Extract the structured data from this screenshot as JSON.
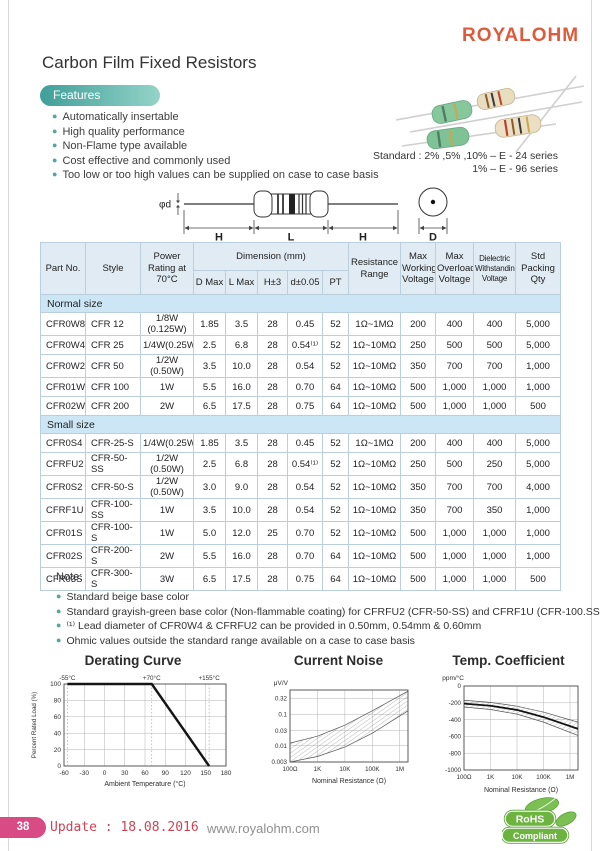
{
  "page": {
    "logo": "ROYALOHM",
    "title": "Carbon Film Fixed Resistors",
    "features_label": "Features",
    "features": [
      "Automatically insertable",
      "High quality performance",
      "Non-Flame type available",
      "Cost effective and commonly used",
      "Too low or too high values can be supplied on case to case basis"
    ],
    "standard_line1": "Standard : 2% ,5% ,10% – E - 24 series",
    "standard_line2": "1% – E - 96 series"
  },
  "diagram": {
    "phi_d": "φd",
    "h_left": "H",
    "l": "L",
    "h_right": "H",
    "d": "D"
  },
  "table": {
    "headers": {
      "part_no": "Part No.",
      "style": "Style",
      "power": "Power Rating at 70°C",
      "dimension": "Dimension (mm)",
      "d_max": "D Max",
      "l_max": "L Max",
      "h": "H±3",
      "d_lead": "d±0.05",
      "pt": "PT",
      "resistance": "Resistance Range",
      "max_working": "Max Working Voltage",
      "max_overload": "Max Overload Voltage",
      "dielectric": "Dielectric Withstanding Voltage",
      "packing": "Std Packing Qty"
    },
    "sections": [
      {
        "label": "Normal size",
        "rows": [
          [
            "CFR0W8",
            "CFR 12",
            "1/8W (0.125W)",
            "1.85",
            "3.5",
            "28",
            "0.45",
            "52",
            "1Ω~1MΩ",
            "200",
            "400",
            "400",
            "5,000"
          ],
          [
            "CFR0W4",
            "CFR 25",
            "1/4W(0.25W)",
            "2.5",
            "6.8",
            "28",
            "0.54⁽¹⁾",
            "52",
            "1Ω~10MΩ",
            "250",
            "500",
            "500",
            "5,000"
          ],
          [
            "CFR0W2",
            "CFR 50",
            "1/2W (0.50W)",
            "3.5",
            "10.0",
            "28",
            "0.54",
            "52",
            "1Ω~10MΩ",
            "350",
            "700",
            "700",
            "1,000"
          ],
          [
            "CFR01W",
            "CFR 100",
            "1W",
            "5.5",
            "16.0",
            "28",
            "0.70",
            "64",
            "1Ω~10MΩ",
            "500",
            "1,000",
            "1,000",
            "1,000"
          ],
          [
            "CFR02W",
            "CFR 200",
            "2W",
            "6.5",
            "17.5",
            "28",
            "0.75",
            "64",
            "1Ω~10MΩ",
            "500",
            "1,000",
            "1,000",
            "500"
          ]
        ]
      },
      {
        "label": "Small size",
        "rows": [
          [
            "CFR0S4",
            "CFR-25-S",
            "1/4W(0.25W)",
            "1.85",
            "3.5",
            "28",
            "0.45",
            "52",
            "1Ω~1MΩ",
            "200",
            "400",
            "400",
            "5,000"
          ],
          [
            "CFRFU2",
            "CFR-50-SS",
            "1/2W (0.50W)",
            "2.5",
            "6.8",
            "28",
            "0.54⁽¹⁾",
            "52",
            "1Ω~10MΩ",
            "250",
            "500",
            "250",
            "5,000"
          ],
          [
            "CFR0S2",
            "CFR-50-S",
            "1/2W (0.50W)",
            "3.0",
            "9.0",
            "28",
            "0.54",
            "52",
            "1Ω~10MΩ",
            "350",
            "700",
            "700",
            "4,000"
          ],
          [
            "CFRF1U",
            "CFR-100-SS",
            "1W",
            "3.5",
            "10.0",
            "28",
            "0.54",
            "52",
            "1Ω~10MΩ",
            "350",
            "700",
            "350",
            "1,000"
          ],
          [
            "CFR01S",
            "CFR-100-S",
            "1W",
            "5.0",
            "12.0",
            "25",
            "0.70",
            "52",
            "1Ω~10MΩ",
            "500",
            "1,000",
            "1,000",
            "1,000"
          ],
          [
            "CFR02S",
            "CFR-200-S",
            "2W",
            "5.5",
            "16.0",
            "28",
            "0.70",
            "64",
            "1Ω~10MΩ",
            "500",
            "1,000",
            "1,000",
            "1,000"
          ],
          [
            "CFR03S",
            "CFR-300-S",
            "3W",
            "6.5",
            "17.5",
            "28",
            "0.75",
            "64",
            "1Ω~10MΩ",
            "500",
            "1,000",
            "1,000",
            "500"
          ]
        ]
      }
    ]
  },
  "note": {
    "title": "Note:",
    "items": [
      "Standard beige base color",
      "Standard grayish-green base color (Non-flammable coating) for CFRFU2 (CFR-50-SS) and CFRF1U (CFR-100.SS)",
      "⁽¹⁾ Lead diameter of CFR0W4 & CFRFU2 can be provided in 0.50mm, 0.54mm & 0.60mm",
      "Ohmic values outside the standard range available on a case to case basis"
    ]
  },
  "chart_data": [
    {
      "type": "line",
      "title": "Derating Curve",
      "xlabel": "Ambient Temperature (°C)",
      "ylabel": "Percent Rated Load (%)",
      "xlim": [
        -60,
        180
      ],
      "ylim": [
        0,
        100
      ],
      "xticks": [
        -60,
        -30,
        0,
        30,
        60,
        90,
        120,
        150,
        180
      ],
      "yticks": [
        0,
        20,
        40,
        60,
        80,
        100
      ],
      "line": [
        [
          -55,
          100
        ],
        [
          70,
          100
        ],
        [
          155,
          0
        ]
      ],
      "annotations": [
        {
          "x": -55,
          "label": "-55°C"
        },
        {
          "x": 70,
          "label": "+70°C"
        },
        {
          "x": 155,
          "label": "+155°C"
        }
      ],
      "grid": true
    },
    {
      "type": "area",
      "title": "Current Noise",
      "xlabel": "Nominal Resistance (Ω)",
      "ylabel": "μV/V",
      "x_scale": "log",
      "y_scale": "log",
      "xlim": [
        100,
        2000000
      ],
      "ylim": [
        0.003,
        0.6
      ],
      "xticks": [
        {
          "v": 100,
          "label": "100Ω"
        },
        {
          "v": 1000,
          "label": "1K"
        },
        {
          "v": 10000,
          "label": "10K"
        },
        {
          "v": 100000,
          "label": "100K"
        },
        {
          "v": 1000000,
          "label": "1M"
        }
      ],
      "yticks": [
        0.32,
        0.1,
        0.03,
        0.01,
        0.003
      ],
      "band_upper": [
        [
          100,
          0.012
        ],
        [
          1000,
          0.02
        ],
        [
          10000,
          0.045
        ],
        [
          100000,
          0.13
        ],
        [
          2000000,
          0.55
        ]
      ],
      "band_lower": [
        [
          100,
          0.003
        ],
        [
          1000,
          0.0045
        ],
        [
          10000,
          0.009
        ],
        [
          100000,
          0.025
        ],
        [
          2000000,
          0.13
        ]
      ],
      "grid": true
    },
    {
      "type": "area",
      "title": "Temp. Coefficient",
      "xlabel": "Nominal Resistance (Ω)",
      "ylabel": "ppm/°C",
      "x_scale": "log",
      "y_scale": "linear",
      "xlim": [
        100,
        2000000
      ],
      "ylim": [
        0,
        -1000
      ],
      "xticks": [
        {
          "v": 100,
          "label": "100Ω"
        },
        {
          "v": 1000,
          "label": "1K"
        },
        {
          "v": 10000,
          "label": "10K"
        },
        {
          "v": 100000,
          "label": "100K"
        },
        {
          "v": 1000000,
          "label": "1M"
        }
      ],
      "yticks": [
        0,
        -200,
        -400,
        -600,
        -800,
        -1000
      ],
      "center": [
        [
          100,
          -210
        ],
        [
          1000,
          -235
        ],
        [
          10000,
          -285
        ],
        [
          100000,
          -370
        ],
        [
          2000000,
          -510
        ]
      ],
      "band_upper": [
        [
          100,
          -170
        ],
        [
          1000,
          -195
        ],
        [
          10000,
          -240
        ],
        [
          100000,
          -310
        ],
        [
          2000000,
          -430
        ]
      ],
      "band_lower": [
        [
          100,
          -250
        ],
        [
          1000,
          -280
        ],
        [
          10000,
          -335
        ],
        [
          100000,
          -430
        ],
        [
          2000000,
          -590
        ]
      ],
      "grid": true
    }
  ],
  "footer": {
    "page_number": "38",
    "update": "Update : 18.08.2016",
    "website": "www.royalohm.com",
    "rohs_top": "RoHS",
    "rohs_bottom": "Compliant"
  },
  "colors": {
    "brand_orange": "#DD5B3C",
    "features_teal": "#3F9F99",
    "table_header_bg": "#E1EBF3",
    "table_section_bg": "#CDE6F6",
    "table_border": "#B9CFDD",
    "footer_pink": "#D84B84",
    "update_red": "#CC4455",
    "rohs_green": "#6CB33F"
  }
}
